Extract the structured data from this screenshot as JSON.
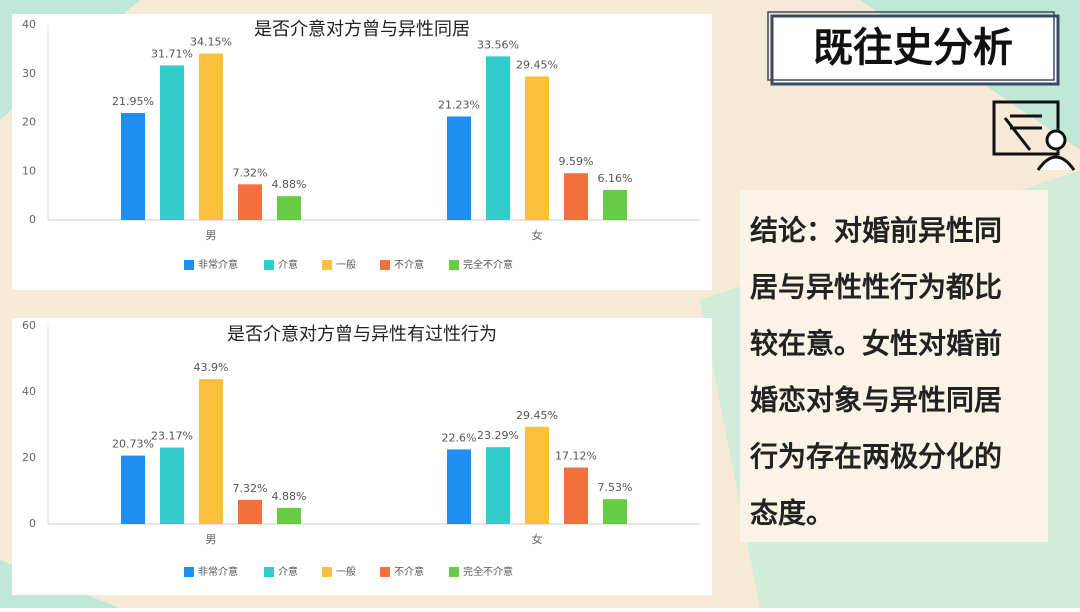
{
  "heading": "既往史分析",
  "conclusion_lines": [
    "结论：对婚前异性同",
    "居与异性性行为都比",
    "较在意。女性对婚前",
    "婚恋对象与异性同居",
    "行为存在两极分化的",
    "态度。"
  ],
  "chart_data": [
    {
      "type": "bar",
      "title": "是否介意对方曾与异性同居",
      "categories": [
        "男",
        "女"
      ],
      "ylim": [
        0,
        40
      ],
      "yticks": [
        0,
        10,
        20,
        30,
        40
      ],
      "series": [
        {
          "name": "非常介意",
          "color": "#1e8ff0",
          "values": [
            21.95,
            21.23
          ],
          "value_labels": [
            "21.95%",
            "21.23%"
          ]
        },
        {
          "name": "介意",
          "color": "#33cccc",
          "values": [
            31.71,
            33.56
          ],
          "value_labels": [
            "31.71%",
            "33.56%"
          ]
        },
        {
          "name": "一般",
          "color": "#fbbf3a",
          "values": [
            34.15,
            29.45
          ],
          "value_labels": [
            "34.15%",
            "29.45%"
          ]
        },
        {
          "name": "不介意",
          "color": "#f4703f",
          "values": [
            7.32,
            9.59
          ],
          "value_labels": [
            "7.32%",
            "9.59%"
          ]
        },
        {
          "name": "完全不介意",
          "color": "#66cc44",
          "values": [
            4.88,
            6.16
          ],
          "value_labels": [
            "4.88%",
            "6.16%"
          ]
        }
      ]
    },
    {
      "type": "bar",
      "title": "是否介意对方曾与异性有过性行为",
      "categories": [
        "男",
        "女"
      ],
      "ylim": [
        0,
        60
      ],
      "yticks": [
        0,
        20,
        40,
        60
      ],
      "series": [
        {
          "name": "非常介意",
          "color": "#1e8ff0",
          "values": [
            20.73,
            22.6
          ],
          "value_labels": [
            "20.73%",
            "22.6%"
          ]
        },
        {
          "name": "介意",
          "color": "#33cccc",
          "values": [
            23.17,
            23.29
          ],
          "value_labels": [
            "23.17%",
            "23.29%"
          ]
        },
        {
          "name": "一般",
          "color": "#fbbf3a",
          "values": [
            43.9,
            29.45
          ],
          "value_labels": [
            "43.9%",
            "29.45%"
          ]
        },
        {
          "name": "不介意",
          "color": "#f4703f",
          "values": [
            7.32,
            17.12
          ],
          "value_labels": [
            "7.32%",
            "17.12%"
          ]
        },
        {
          "name": "完全不介意",
          "color": "#66cc44",
          "values": [
            4.88,
            7.53
          ],
          "value_labels": [
            "4.88%",
            "7.53%"
          ]
        }
      ]
    }
  ]
}
